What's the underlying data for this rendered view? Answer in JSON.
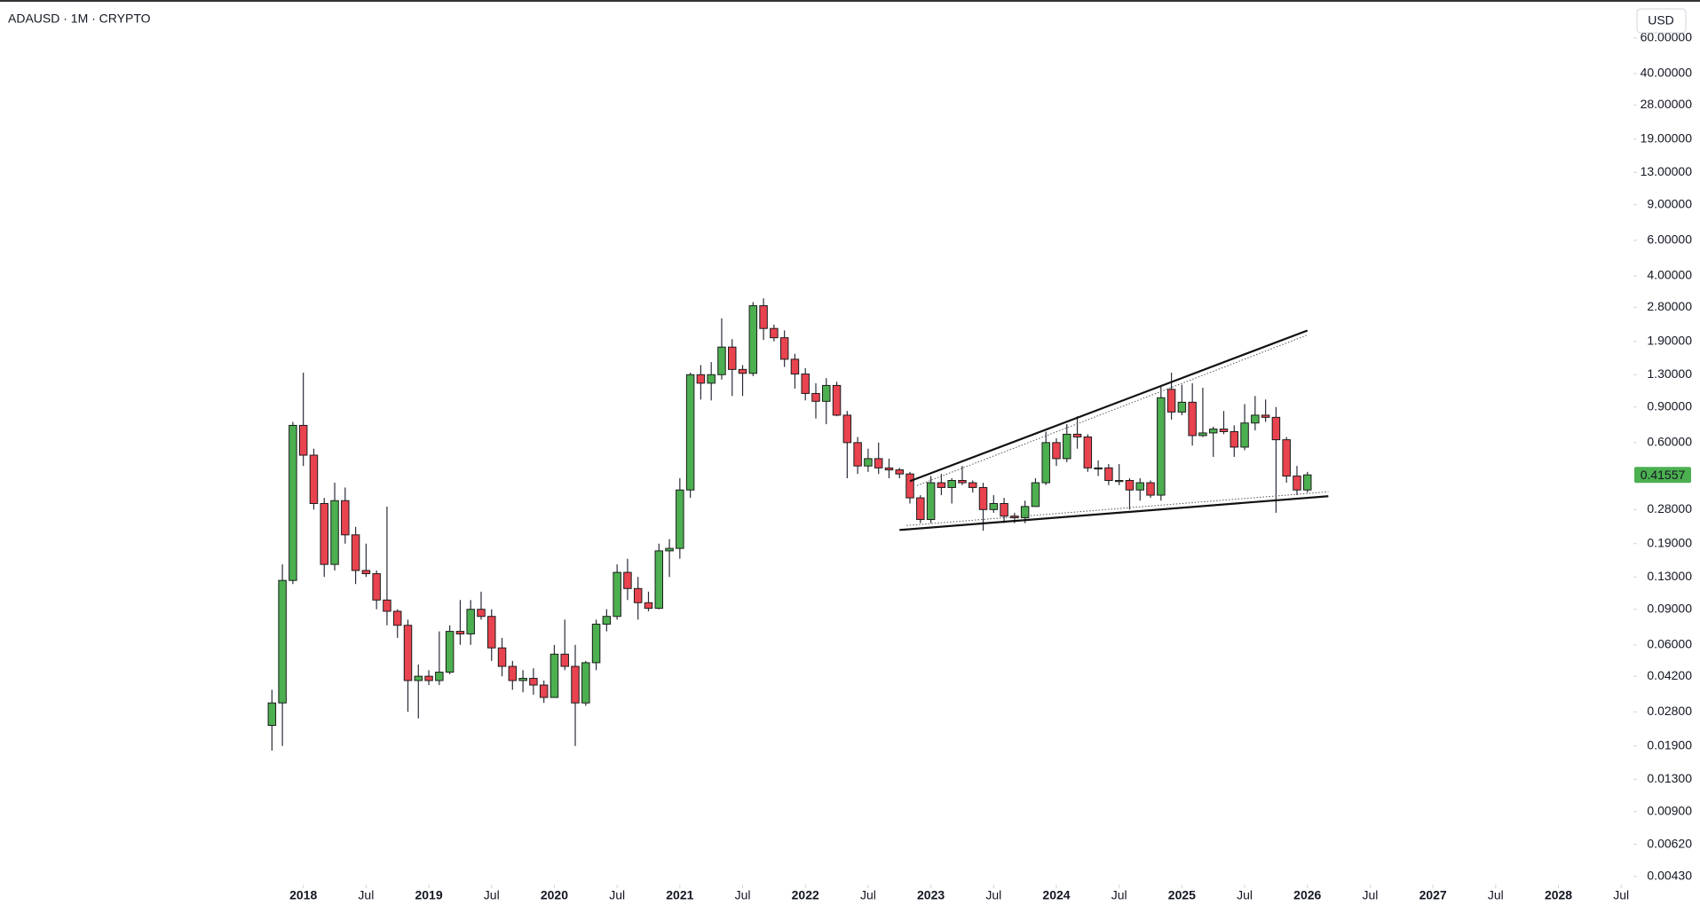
{
  "chart_data": {
    "type": "candlestick",
    "title": "ADAUSD · 1M · CRYPTO",
    "currency": "USD",
    "log_scale": true,
    "grid": false,
    "up_color": "#4caf50",
    "down_color": "#e8434f",
    "x": [
      "2017-10",
      "2017-11",
      "2017-12",
      "2018-01",
      "2018-02",
      "2018-03",
      "2018-04",
      "2018-05",
      "2018-06",
      "2018-07",
      "2018-08",
      "2018-09",
      "2018-10",
      "2018-11",
      "2018-12",
      "2019-01",
      "2019-02",
      "2019-03",
      "2019-04",
      "2019-05",
      "2019-06",
      "2019-07",
      "2019-08",
      "2019-09",
      "2019-10",
      "2019-11",
      "2019-12",
      "2020-01",
      "2020-02",
      "2020-03",
      "2020-04",
      "2020-05",
      "2020-06",
      "2020-07",
      "2020-08",
      "2020-09",
      "2020-10",
      "2020-11",
      "2020-12",
      "2021-01",
      "2021-02",
      "2021-03",
      "2021-04",
      "2021-05",
      "2021-06",
      "2021-07",
      "2021-08",
      "2021-09",
      "2021-10",
      "2021-11",
      "2021-12",
      "2022-01",
      "2022-02",
      "2022-03",
      "2022-04",
      "2022-05",
      "2022-06",
      "2022-07",
      "2022-08",
      "2022-09",
      "2022-10",
      "2022-11",
      "2022-12",
      "2023-01",
      "2023-02",
      "2023-03",
      "2023-04",
      "2023-05",
      "2023-06",
      "2023-07",
      "2023-08",
      "2023-09",
      "2023-10",
      "2023-11",
      "2023-12",
      "2024-01",
      "2024-02",
      "2024-03",
      "2024-04",
      "2024-05",
      "2024-06",
      "2024-07",
      "2024-08",
      "2024-09",
      "2024-10",
      "2024-11",
      "2024-12",
      "2025-01",
      "2025-02",
      "2025-03",
      "2025-04",
      "2025-05",
      "2025-06",
      "2025-07",
      "2025-08",
      "2025-09",
      "2025-10",
      "2025-11",
      "2025-12",
      "2026-01"
    ],
    "open": [
      0.024,
      0.031,
      0.125,
      0.73,
      0.52,
      0.3,
      0.15,
      0.31,
      0.21,
      0.14,
      0.135,
      0.1,
      0.088,
      0.075,
      0.04,
      0.042,
      0.04,
      0.044,
      0.07,
      0.068,
      0.09,
      0.083,
      0.058,
      0.047,
      0.04,
      0.041,
      0.038,
      0.033,
      0.054,
      0.047,
      0.031,
      0.049,
      0.076,
      0.083,
      0.137,
      0.114,
      0.097,
      0.091,
      0.175,
      0.18,
      0.35,
      1.3,
      1.18,
      1.3,
      1.78,
      1.38,
      1.32,
      2.85,
      2.2,
      1.98,
      1.55,
      1.31,
      1.05,
      0.96,
      1.15,
      0.82,
      0.6,
      0.46,
      0.5,
      0.45,
      0.44,
      0.42,
      0.32,
      0.25,
      0.38,
      0.36,
      0.39,
      0.38,
      0.36,
      0.28,
      0.3,
      0.26,
      0.255,
      0.29,
      0.38,
      0.6,
      0.5,
      0.66,
      0.64,
      0.45,
      0.45,
      0.39,
      0.39,
      0.35,
      0.38,
      0.33,
      1.1,
      0.85,
      0.95,
      0.65,
      0.67,
      0.7,
      0.68,
      0.57,
      0.75,
      0.82,
      0.8,
      0.62,
      0.41,
      0.35
    ],
    "high": [
      0.036,
      0.15,
      0.76,
      1.33,
      0.56,
      0.32,
      0.38,
      0.36,
      0.23,
      0.19,
      0.14,
      0.29,
      0.09,
      0.08,
      0.048,
      0.045,
      0.07,
      0.075,
      0.1,
      0.1,
      0.11,
      0.09,
      0.065,
      0.05,
      0.045,
      0.046,
      0.04,
      0.06,
      0.08,
      0.06,
      0.05,
      0.08,
      0.09,
      0.15,
      0.16,
      0.13,
      0.11,
      0.19,
      0.2,
      0.4,
      1.33,
      1.45,
      1.5,
      2.47,
      1.95,
      1.45,
      2.97,
      3.1,
      2.3,
      2.15,
      1.65,
      1.4,
      1.18,
      1.25,
      1.2,
      0.86,
      0.64,
      0.56,
      0.6,
      0.5,
      0.45,
      0.43,
      0.33,
      0.41,
      0.42,
      0.4,
      0.46,
      0.39,
      0.38,
      0.33,
      0.32,
      0.27,
      0.31,
      0.4,
      0.68,
      0.63,
      0.74,
      0.81,
      0.66,
      0.49,
      0.47,
      0.47,
      0.4,
      0.4,
      0.39,
      1.15,
      1.33,
      1.16,
      1.18,
      1.12,
      0.72,
      0.86,
      0.73,
      0.93,
      1.02,
      0.98,
      0.9,
      0.64,
      0.46,
      0.43
    ],
    "low": [
      0.018,
      0.019,
      0.12,
      0.46,
      0.28,
      0.13,
      0.14,
      0.19,
      0.12,
      0.13,
      0.09,
      0.075,
      0.065,
      0.028,
      0.026,
      0.038,
      0.038,
      0.043,
      0.06,
      0.06,
      0.08,
      0.05,
      0.042,
      0.036,
      0.035,
      0.034,
      0.031,
      0.033,
      0.045,
      0.019,
      0.03,
      0.045,
      0.07,
      0.08,
      0.1,
      0.08,
      0.088,
      0.09,
      0.13,
      0.16,
      0.32,
      0.98,
      0.97,
      1.23,
      1.02,
      1.02,
      1.28,
      1.93,
      1.9,
      1.42,
      1.11,
      0.97,
      0.79,
      0.74,
      0.81,
      0.4,
      0.42,
      0.43,
      0.42,
      0.4,
      0.4,
      0.3,
      0.24,
      0.24,
      0.33,
      0.3,
      0.37,
      0.34,
      0.22,
      0.27,
      0.24,
      0.24,
      0.24,
      0.29,
      0.37,
      0.46,
      0.48,
      0.56,
      0.43,
      0.41,
      0.37,
      0.37,
      0.28,
      0.31,
      0.32,
      0.31,
      0.78,
      0.82,
      0.58,
      0.64,
      0.51,
      0.66,
      0.51,
      0.55,
      0.69,
      0.76,
      0.27,
      0.38,
      0.33,
      0.34
    ],
    "close": [
      0.031,
      0.125,
      0.73,
      0.52,
      0.3,
      0.15,
      0.31,
      0.21,
      0.14,
      0.135,
      0.1,
      0.088,
      0.075,
      0.04,
      0.042,
      0.04,
      0.044,
      0.07,
      0.068,
      0.09,
      0.083,
      0.058,
      0.047,
      0.04,
      0.041,
      0.038,
      0.033,
      0.054,
      0.047,
      0.031,
      0.049,
      0.076,
      0.083,
      0.137,
      0.114,
      0.097,
      0.091,
      0.175,
      0.18,
      0.35,
      1.3,
      1.18,
      1.3,
      1.78,
      1.38,
      1.32,
      2.85,
      2.2,
      1.98,
      1.55,
      1.31,
      1.05,
      0.96,
      1.15,
      0.82,
      0.6,
      0.46,
      0.5,
      0.45,
      0.44,
      0.42,
      0.32,
      0.25,
      0.38,
      0.36,
      0.39,
      0.38,
      0.36,
      0.28,
      0.3,
      0.26,
      0.255,
      0.29,
      0.38,
      0.6,
      0.5,
      0.66,
      0.64,
      0.45,
      0.45,
      0.39,
      0.39,
      0.35,
      0.38,
      0.33,
      1.0,
      0.85,
      0.95,
      0.65,
      0.67,
      0.7,
      0.68,
      0.57,
      0.75,
      0.82,
      0.8,
      0.62,
      0.41,
      0.35,
      0.41557
    ],
    "xlim": [
      "2015-08",
      "2028-08"
    ],
    "ylim": [
      0.004,
      92.5
    ],
    "xticks": [
      {
        "value": "2018-01",
        "label": "2018"
      },
      {
        "value": "2018-07",
        "label": "Jul"
      },
      {
        "value": "2019-01",
        "label": "2019"
      },
      {
        "value": "2019-07",
        "label": "Jul"
      },
      {
        "value": "2020-01",
        "label": "2020"
      },
      {
        "value": "2020-07",
        "label": "Jul"
      },
      {
        "value": "2021-01",
        "label": "2021"
      },
      {
        "value": "2021-07",
        "label": "Jul"
      },
      {
        "value": "2022-01",
        "label": "2022"
      },
      {
        "value": "2022-07",
        "label": "Jul"
      },
      {
        "value": "2023-01",
        "label": "2023"
      },
      {
        "value": "2023-07",
        "label": "Jul"
      },
      {
        "value": "2024-01",
        "label": "2024"
      },
      {
        "value": "2024-07",
        "label": "Jul"
      },
      {
        "value": "2025-01",
        "label": "2025"
      },
      {
        "value": "2025-07",
        "label": "Jul"
      },
      {
        "value": "2026-01",
        "label": "2026"
      },
      {
        "value": "2026-07",
        "label": "Jul"
      },
      {
        "value": "2027-01",
        "label": "2027"
      },
      {
        "value": "2027-07",
        "label": "Jul"
      },
      {
        "value": "2028-01",
        "label": "2028"
      },
      {
        "value": "2028-07",
        "label": "Jul"
      }
    ],
    "yticks": [
      {
        "value": 60,
        "label": "60.00000"
      },
      {
        "value": 40,
        "label": "40.00000"
      },
      {
        "value": 28,
        "label": "28.00000"
      },
      {
        "value": 19,
        "label": "19.00000"
      },
      {
        "value": 13,
        "label": "13.00000"
      },
      {
        "value": 9,
        "label": "9.00000"
      },
      {
        "value": 6,
        "label": "6.00000"
      },
      {
        "value": 4,
        "label": "4.00000"
      },
      {
        "value": 2.8,
        "label": "2.80000"
      },
      {
        "value": 1.9,
        "label": "1.90000"
      },
      {
        "value": 1.3,
        "label": "1.30000"
      },
      {
        "value": 0.9,
        "label": "0.90000"
      },
      {
        "value": 0.6,
        "label": "0.60000"
      },
      {
        "value": 0.28,
        "label": "0.28000"
      },
      {
        "value": 0.19,
        "label": "0.19000"
      },
      {
        "value": 0.13,
        "label": "0.13000"
      },
      {
        "value": 0.09,
        "label": "0.09000"
      },
      {
        "value": 0.06,
        "label": "0.06000"
      },
      {
        "value": 0.042,
        "label": "0.04200"
      },
      {
        "value": 0.028,
        "label": "0.02800"
      },
      {
        "value": 0.019,
        "label": "0.01900"
      },
      {
        "value": 0.013,
        "label": "0.01300"
      },
      {
        "value": 0.009,
        "label": "0.00900"
      },
      {
        "value": 0.0062,
        "label": "0.00620"
      },
      {
        "value": 0.0043,
        "label": "0.00430"
      }
    ],
    "trendlines": [
      {
        "x": [
          "2022-11",
          "2026-01"
        ],
        "y": [
          0.387,
          2.15
        ]
      },
      {
        "x": [
          "2022-10",
          "2026-03"
        ],
        "y": [
          0.222,
          0.326
        ]
      }
    ]
  }
}
